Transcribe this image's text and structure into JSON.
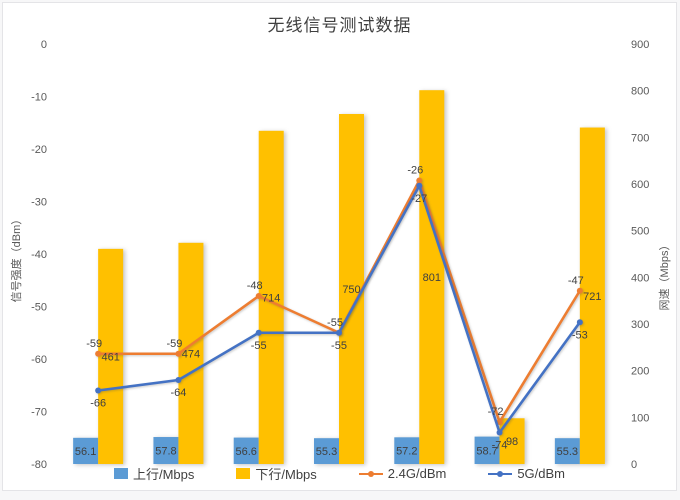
{
  "window": {
    "background": "#ffffff",
    "border_color": "#e4e4e7"
  },
  "chart_data": {
    "type": "combo",
    "title": "无线信号测试数据",
    "grid": false,
    "legend_position": "bottom",
    "x_axis": {
      "labels_visible": false,
      "num_points": 7
    },
    "left_axis": {
      "label": "信号强度（dBm）",
      "min": -80,
      "max": 0,
      "step": 10
    },
    "right_axis": {
      "label": "网速（Mbps）",
      "min": 0,
      "max": 900,
      "step": 100
    },
    "series": [
      {
        "name": "上行/Mbps",
        "type": "bar",
        "axis": "right",
        "color": "#5B9BD5",
        "values": [
          56.1,
          57.8,
          56.6,
          55.3,
          57.2,
          58.7,
          55.3
        ]
      },
      {
        "name": "下行/Mbps",
        "type": "bar",
        "axis": "right",
        "color": "#FFC000",
        "values": [
          461,
          474,
          714,
          750,
          801,
          98,
          721
        ]
      },
      {
        "name": "2.4G/dBm",
        "type": "line",
        "axis": "left",
        "color": "#ED7D31",
        "values": [
          -59,
          -59,
          -48,
          -55,
          -26,
          -72,
          -47
        ]
      },
      {
        "name": "5G/dBm",
        "type": "line",
        "axis": "left",
        "color": "#4472C4",
        "values": [
          -66,
          -64,
          -55,
          -55,
          -27,
          -74,
          -53
        ]
      }
    ]
  }
}
